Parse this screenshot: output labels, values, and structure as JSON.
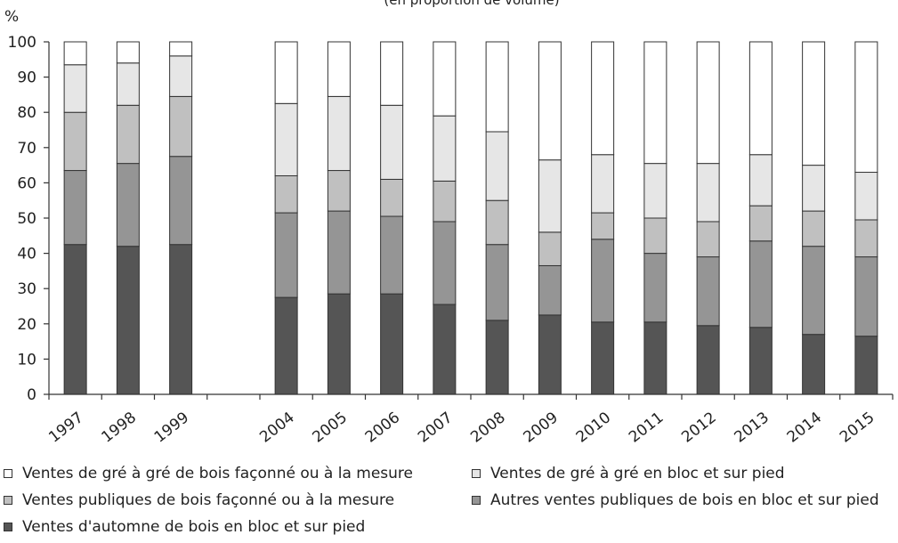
{
  "chart_data": {
    "type": "bar",
    "stacked": true,
    "subtitle": "(en proportion de volume)",
    "ylabel": "%",
    "ylim": [
      0,
      100
    ],
    "yticks": [
      0,
      10,
      20,
      30,
      40,
      50,
      60,
      70,
      80,
      90,
      100
    ],
    "categories": [
      "1997",
      "1998",
      "1999",
      "",
      "2004",
      "2005",
      "2006",
      "2007",
      "2008",
      "2009",
      "2010",
      "2011",
      "2012",
      "2013",
      "2014",
      "2015"
    ],
    "series": [
      {
        "name": "Ventes d'automne de bois en bloc et sur pied",
        "color": "#555555",
        "values": [
          42.5,
          42,
          42.5,
          null,
          27.5,
          28.5,
          28.5,
          25.5,
          21,
          22.5,
          20.5,
          20.5,
          19.5,
          19,
          17,
          16.5
        ]
      },
      {
        "name": "Autres ventes publiques de bois en bloc et sur pied",
        "color": "#959595",
        "values": [
          21,
          23.5,
          25,
          null,
          24,
          23.5,
          22,
          23.5,
          21.5,
          14,
          23.5,
          19.5,
          19.5,
          24.5,
          25,
          22.5
        ]
      },
      {
        "name": "Ventes publiques de bois façonné ou à la mesure",
        "color": "#c0c0c0",
        "values": [
          16.5,
          16.5,
          17,
          null,
          10.5,
          11.5,
          10.5,
          11.5,
          12.5,
          9.5,
          7.5,
          10,
          10,
          10,
          10,
          10.5
        ]
      },
      {
        "name": "Ventes de gré à gré en bloc et sur pied",
        "color": "#e6e6e6",
        "values": [
          13.5,
          12,
          11.5,
          null,
          20.5,
          21,
          21,
          18.5,
          19.5,
          20.5,
          16.5,
          15.5,
          16.5,
          14.5,
          13,
          13.5
        ]
      },
      {
        "name": "Ventes de gré à gré de bois façonné ou à la mesure",
        "color": "#ffffff",
        "values": [
          6.5,
          6,
          4,
          null,
          17.5,
          15.5,
          18,
          21,
          25.5,
          33.5,
          32,
          34.5,
          34.5,
          32,
          35,
          37
        ]
      }
    ],
    "legend_position": "bottom",
    "grid": false
  }
}
